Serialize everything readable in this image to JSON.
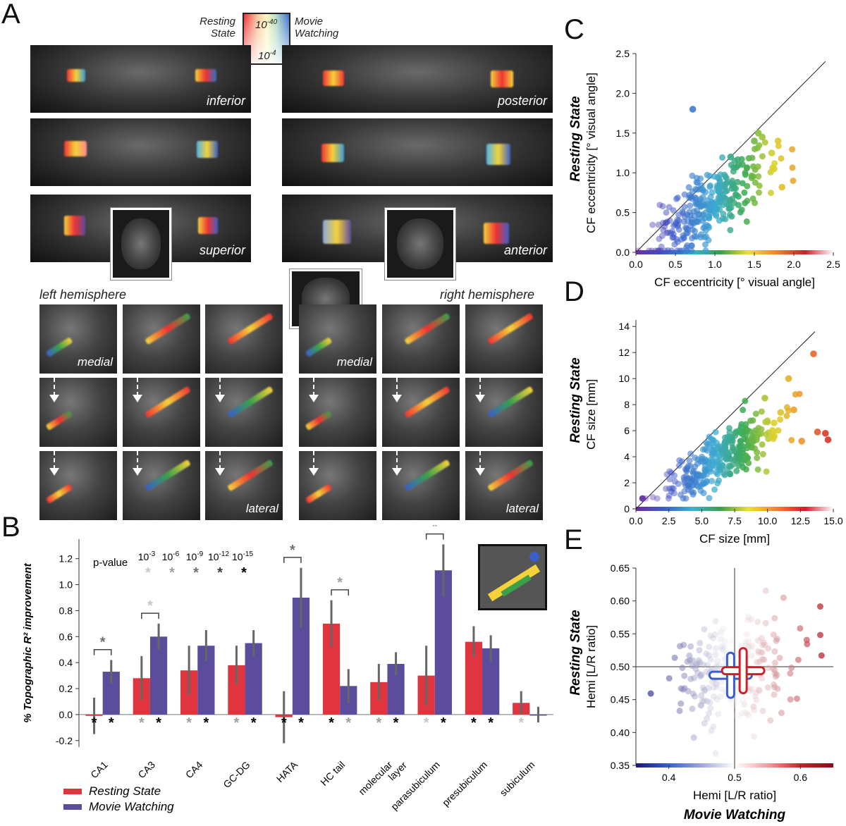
{
  "panels": {
    "a": "A",
    "b": "B",
    "c": "C",
    "d": "D",
    "e": "E"
  },
  "panelA": {
    "colorbar": {
      "left_label_1": "Resting",
      "left_label_2": "State",
      "right_label_1": "Movie",
      "right_label_2": "Watching",
      "top": "10",
      "top_exp": "-40",
      "bottom": "10",
      "bottom_exp": "-4"
    },
    "axial_labels": [
      "inferior",
      "",
      "superior"
    ],
    "coronal_labels": [
      "posterior",
      "",
      "anterior"
    ],
    "left_hemisphere": "left hemisphere",
    "right_hemisphere": "right hemisphere",
    "medial": "medial",
    "lateral": "lateral"
  },
  "colors": {
    "resting": "#e0353f",
    "movie": "#5b4c9c",
    "error": "#666666",
    "sig_gray": "#aaaaaa"
  },
  "chart_data": [
    {
      "panel": "B",
      "type": "bar",
      "ylabel": "% Topographic R² improvement",
      "ylim": [
        -0.25,
        1.35
      ],
      "yticks": [
        -0.2,
        0.0,
        0.2,
        0.4,
        0.6,
        0.8,
        1.0,
        1.2
      ],
      "categories": [
        "CA1",
        "CA3",
        "CA4",
        "GC-DG",
        "HATA",
        "HC tail",
        "molecular layer",
        "parasubiculum",
        "presubiculum",
        "subiculum"
      ],
      "category_lines": [
        [
          "CA1"
        ],
        [
          "CA3"
        ],
        [
          "CA4"
        ],
        [
          "GC-DG"
        ],
        [
          "HATA"
        ],
        [
          "HC tail"
        ],
        [
          "molecular",
          "layer"
        ],
        [
          "parasubiculum"
        ],
        [
          "presubiculum"
        ],
        [
          "subiculum"
        ]
      ],
      "series": [
        {
          "name": "Resting State",
          "values": [
            -0.01,
            0.28,
            0.34,
            0.38,
            -0.02,
            0.7,
            0.25,
            0.3,
            0.56,
            0.09
          ],
          "err": [
            0.14,
            0.17,
            0.19,
            0.15,
            0.2,
            0.18,
            0.14,
            0.23,
            0.12,
            0.09
          ]
        },
        {
          "name": "Movie Watching",
          "values": [
            0.33,
            0.6,
            0.53,
            0.55,
            0.9,
            0.22,
            0.39,
            1.11,
            0.51,
            0.0
          ],
          "err": [
            0.09,
            0.1,
            0.12,
            0.1,
            0.23,
            0.13,
            0.09,
            0.2,
            0.1,
            0.06
          ]
        }
      ],
      "pvalue_legend": {
        "label": "p-value",
        "levels": [
          {
            "base": "10",
            "exp": "-3",
            "color": "#c8c8c8"
          },
          {
            "base": "10",
            "exp": "-6",
            "color": "#a0a0a0"
          },
          {
            "base": "10",
            "exp": "-9",
            "color": "#707070"
          },
          {
            "base": "10",
            "exp": "-12",
            "color": "#404040"
          },
          {
            "base": "10",
            "exp": "-15",
            "color": "#000000"
          }
        ]
      },
      "significance_stars": [
        [
          "#000000",
          "#000000"
        ],
        [
          "#a0a0a0",
          "#000000"
        ],
        [
          "#a0a0a0",
          "#000000"
        ],
        [
          "#a0a0a0",
          "#000000"
        ],
        [
          "#000000",
          "#000000"
        ],
        [
          "#000000",
          "#a0a0a0"
        ],
        [
          "#a0a0a0",
          "#000000"
        ],
        [
          "#c8c8c8",
          "#000000"
        ],
        [
          "#000000",
          "#000000"
        ],
        [
          "#c8c8c8",
          ""
        ]
      ],
      "brackets": [
        {
          "index": 0,
          "color": "#707070"
        },
        {
          "index": 1,
          "color": "#c8c8c8"
        },
        {
          "index": 4,
          "color": "#707070"
        },
        {
          "index": 5,
          "color": "#a0a0a0"
        },
        {
          "index": 7,
          "color": "#a0a0a0"
        }
      ],
      "star": "*",
      "legend": [
        "Resting State",
        "Movie Watching"
      ]
    },
    {
      "panel": "C",
      "type": "scatter",
      "xlabel": "CF eccentricity [° visual angle]",
      "ylabel_bold": "Resting State",
      "ylabel": "CF eccentricity [° visual angle]",
      "xlim": [
        0,
        2.5
      ],
      "ylim": [
        0,
        2.5
      ],
      "xticks": [
        "0.0",
        "0.5",
        "1.0",
        "1.5",
        "2.0",
        "2.5"
      ],
      "yticks": [
        "0.0",
        "0.5",
        "1.0",
        "1.5",
        "2.0",
        "2.5"
      ],
      "identity_line": true,
      "highlight_points": [
        [
          0.72,
          1.8
        ],
        [
          1.55,
          1.5
        ],
        [
          1.6,
          1.45
        ],
        [
          1.72,
          1.25
        ],
        [
          1.8,
          1.4
        ],
        [
          1.75,
          1.05
        ],
        [
          1.5,
          1.4
        ],
        [
          1.85,
          0.82
        ],
        [
          1.3,
          1.1
        ],
        [
          1.2,
          1.2
        ]
      ]
    },
    {
      "panel": "D",
      "type": "scatter",
      "xlabel": "CF size [mm]",
      "ylabel_bold": "Resting State",
      "ylabel": "CF size [mm]",
      "xlim": [
        0,
        15
      ],
      "ylim": [
        0,
        14.5
      ],
      "xticks": [
        "0.0",
        "2.5",
        "5.0",
        "7.5",
        "10.0",
        "12.5",
        "15.0"
      ],
      "yticks": [
        "0",
        "2",
        "4",
        "6",
        "8",
        "10",
        "12",
        "14"
      ],
      "identity_line": true,
      "highlight_points": [
        [
          13.5,
          11.9
        ],
        [
          11.6,
          10.0
        ],
        [
          9.8,
          8.5
        ],
        [
          12.0,
          7.6
        ],
        [
          11.0,
          7.4
        ],
        [
          13.8,
          5.9
        ],
        [
          14.4,
          5.8
        ],
        [
          14.6,
          5.3
        ],
        [
          12.6,
          5.2
        ],
        [
          10.5,
          6.6
        ]
      ]
    },
    {
      "panel": "E",
      "type": "scatter",
      "xlabel": "Hemi [L/R ratio]",
      "xlabel_bold": "Movie Watching",
      "ylabel_bold": "Resting State",
      "ylabel": "Hemi [L/R ratio]",
      "xlim": [
        0.35,
        0.65
      ],
      "ylim": [
        0.35,
        0.65
      ],
      "xticks": [
        "0.4",
        "0.5",
        "0.6"
      ],
      "yticks": [
        "0.35",
        "0.40",
        "0.45",
        "0.50",
        "0.55",
        "0.60",
        "0.65"
      ],
      "crosshair": [
        0.5,
        0.5
      ],
      "summary_crosses": [
        {
          "series": "blue",
          "x": 0.494,
          "y": 0.487
        },
        {
          "series": "red",
          "x": 0.513,
          "y": 0.494
        }
      ]
    }
  ]
}
